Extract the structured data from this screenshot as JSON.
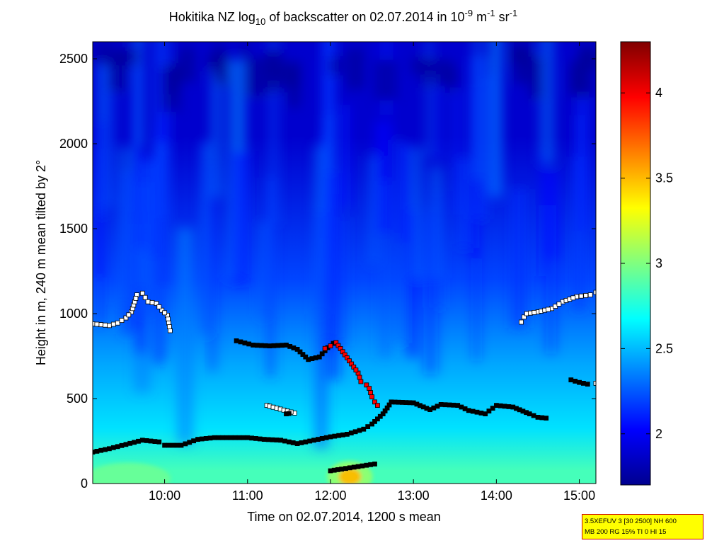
{
  "chart_data": {
    "type": "heatmap",
    "title": {
      "prefix": "Hokitika NZ log",
      "sub": "10",
      "mid": " of backscatter on 02.07.2014 in 10",
      "exp1": "-9",
      "unit1": " m",
      "exp2": "-1",
      "unit2": " sr",
      "exp3": "-1"
    },
    "xlabel": "Time on 02.07.2014, 1200 s mean",
    "ylabel": "Height in m, 240 m mean tilted by 2°",
    "xlim": [
      "09:08",
      "15:12"
    ],
    "ylim": [
      0,
      2600
    ],
    "x_ticks": [
      "10:00",
      "11:00",
      "12:00",
      "13:00",
      "14:00",
      "15:00"
    ],
    "y_ticks": [
      0,
      500,
      1000,
      1500,
      2000,
      2500
    ],
    "colorbar": {
      "range": [
        1.7,
        4.3
      ],
      "ticks": [
        "2",
        "2.5",
        "3",
        "3.5",
        "4"
      ],
      "colormap": "jet"
    },
    "background_field": [
      {
        "height_range": [
          0,
          150
        ],
        "value": 2.85
      },
      {
        "height_range": [
          150,
          500
        ],
        "value": 2.6
      },
      {
        "height_range": [
          500,
          900
        ],
        "value": 2.45
      },
      {
        "height_range": [
          900,
          1500
        ],
        "value": 2.2
      },
      {
        "height_range": [
          1500,
          2600
        ],
        "value": 1.9
      }
    ],
    "hotspot": {
      "time": "12:14",
      "height": 40,
      "value": 3.5
    },
    "marker_series": [
      {
        "marker": "white-square",
        "points": [
          [
            "09:08",
            940
          ],
          [
            "09:14",
            935
          ],
          [
            "09:20",
            930
          ],
          [
            "09:26",
            945
          ],
          [
            "09:32",
            975
          ],
          [
            "09:36",
            1010
          ],
          [
            "09:40",
            1110
          ],
          [
            "09:44",
            1120
          ],
          [
            "09:48",
            1070
          ],
          [
            "09:54",
            1060
          ],
          [
            "09:58",
            1020
          ],
          [
            "10:02",
            990
          ],
          [
            "10:04",
            900
          ]
        ]
      },
      {
        "marker": "black-square",
        "points": [
          [
            "09:08",
            185
          ],
          [
            "09:20",
            205
          ],
          [
            "09:32",
            230
          ],
          [
            "09:44",
            255
          ],
          [
            "09:56",
            245
          ],
          [
            "10:00",
            225
          ],
          [
            "10:12",
            225
          ],
          [
            "10:24",
            260
          ],
          [
            "10:36",
            270
          ],
          [
            "10:48",
            270
          ],
          [
            "11:00",
            270
          ],
          [
            "11:12",
            260
          ],
          [
            "11:24",
            255
          ],
          [
            "11:36",
            235
          ],
          [
            "11:48",
            255
          ],
          [
            "12:00",
            275
          ],
          [
            "12:12",
            290
          ],
          [
            "12:24",
            320
          ],
          [
            "12:30",
            350
          ],
          [
            "12:34",
            380
          ],
          [
            "12:38",
            410
          ],
          [
            "12:44",
            480
          ],
          [
            "13:00",
            475
          ],
          [
            "13:12",
            435
          ],
          [
            "13:20",
            465
          ],
          [
            "13:32",
            460
          ],
          [
            "13:40",
            430
          ],
          [
            "13:52",
            410
          ],
          [
            "14:00",
            460
          ],
          [
            "14:12",
            450
          ],
          [
            "14:24",
            410
          ],
          [
            "14:30",
            390
          ],
          [
            "14:36",
            385
          ]
        ]
      },
      {
        "marker": "black-square",
        "points": [
          [
            "10:52",
            840
          ],
          [
            "11:04",
            815
          ],
          [
            "11:16",
            810
          ],
          [
            "11:28",
            815
          ],
          [
            "11:36",
            790
          ],
          [
            "11:44",
            730
          ],
          [
            "11:52",
            745
          ],
          [
            "11:58",
            800
          ],
          [
            "12:02",
            825
          ]
        ]
      },
      {
        "marker": "red-square",
        "points": [
          [
            "11:56",
            795
          ],
          [
            "12:00",
            810
          ],
          [
            "12:04",
            830
          ],
          [
            "12:20",
            650
          ],
          [
            "12:22",
            600
          ],
          [
            "12:26",
            580
          ],
          [
            "12:28",
            560
          ],
          [
            "12:30",
            510
          ],
          [
            "12:32",
            480
          ],
          [
            "12:34",
            460
          ]
        ]
      },
      {
        "marker": "black-square",
        "points": [
          [
            "12:00",
            75
          ],
          [
            "12:08",
            85
          ],
          [
            "12:20",
            100
          ],
          [
            "12:32",
            115
          ]
        ]
      },
      {
        "marker": "white-square",
        "points": [
          [
            "11:14",
            460
          ],
          [
            "11:16",
            455
          ],
          [
            "11:34",
            415
          ]
        ]
      },
      {
        "marker": "black-square",
        "points": [
          [
            "11:28",
            410
          ],
          [
            "11:30",
            412
          ]
        ]
      },
      {
        "marker": "white-square",
        "points": [
          [
            "14:18",
            950
          ],
          [
            "14:20",
            980
          ],
          [
            "14:22",
            1000
          ],
          [
            "14:30",
            1010
          ],
          [
            "14:40",
            1030
          ],
          [
            "14:48",
            1070
          ],
          [
            "14:58",
            1100
          ],
          [
            "15:08",
            1110
          ],
          [
            "15:12",
            1125
          ]
        ]
      },
      {
        "marker": "black-square",
        "points": [
          [
            "14:54",
            610
          ],
          [
            "15:00",
            595
          ],
          [
            "15:06",
            585
          ]
        ]
      },
      {
        "marker": "white-square",
        "points": [
          [
            "15:12",
            590
          ]
        ]
      }
    ]
  },
  "infobox": {
    "line1": "3.5XEFUV 3 [30 2500] NH 600",
    "line2": "MB 200 RG 15% TI 0 HI 15"
  },
  "colors": {
    "frame": "#000000",
    "infobox_bg": "#ffff00",
    "infobox_border": "#cc0000"
  }
}
